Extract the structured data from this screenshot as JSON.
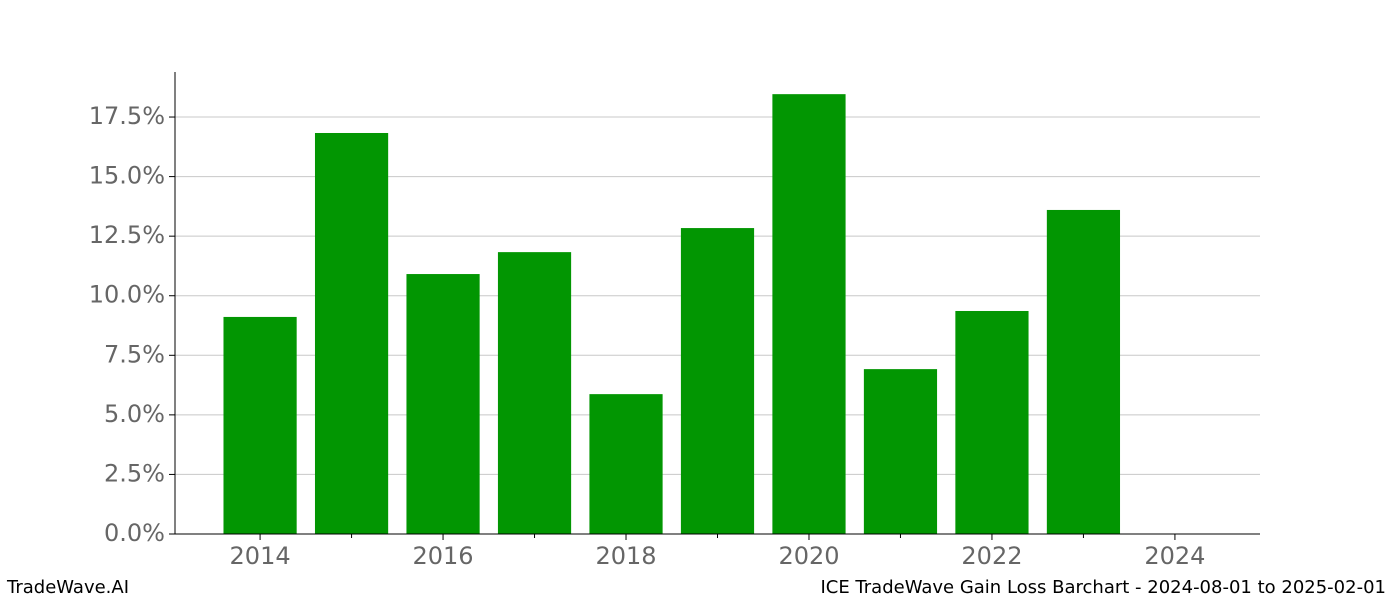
{
  "chart_data": {
    "type": "bar",
    "x": [
      2014,
      2015,
      2016,
      2017,
      2018,
      2019,
      2020,
      2021,
      2022,
      2023
    ],
    "values": [
      9.11,
      16.83,
      10.91,
      11.83,
      5.87,
      12.84,
      18.46,
      6.92,
      9.36,
      13.6
    ],
    "color": "#029602",
    "xlim": [
      2013.07,
      2024.93
    ],
    "xticks": [
      2014,
      2016,
      2018,
      2020,
      2022,
      2024
    ],
    "xticks_minor": [
      2015,
      2017,
      2019,
      2021,
      2023
    ],
    "ylim": [
      0,
      19.39
    ],
    "yticks": [
      {
        "value": 0,
        "label": "0.0%"
      },
      {
        "value": 2.5,
        "label": "2.5%"
      },
      {
        "value": 5,
        "label": "5.0%"
      },
      {
        "value": 7.5,
        "label": "7.5%"
      },
      {
        "value": 10,
        "label": "10.0%"
      },
      {
        "value": 12.5,
        "label": "12.5%"
      },
      {
        "value": 15,
        "label": "15.0%"
      },
      {
        "value": 17.5,
        "label": "17.5%"
      }
    ],
    "grid": true
  },
  "footer": {
    "left": "TradeWave.AI",
    "right": "ICE TradeWave Gain Loss Barchart - 2024-08-01 to 2025-02-01"
  }
}
